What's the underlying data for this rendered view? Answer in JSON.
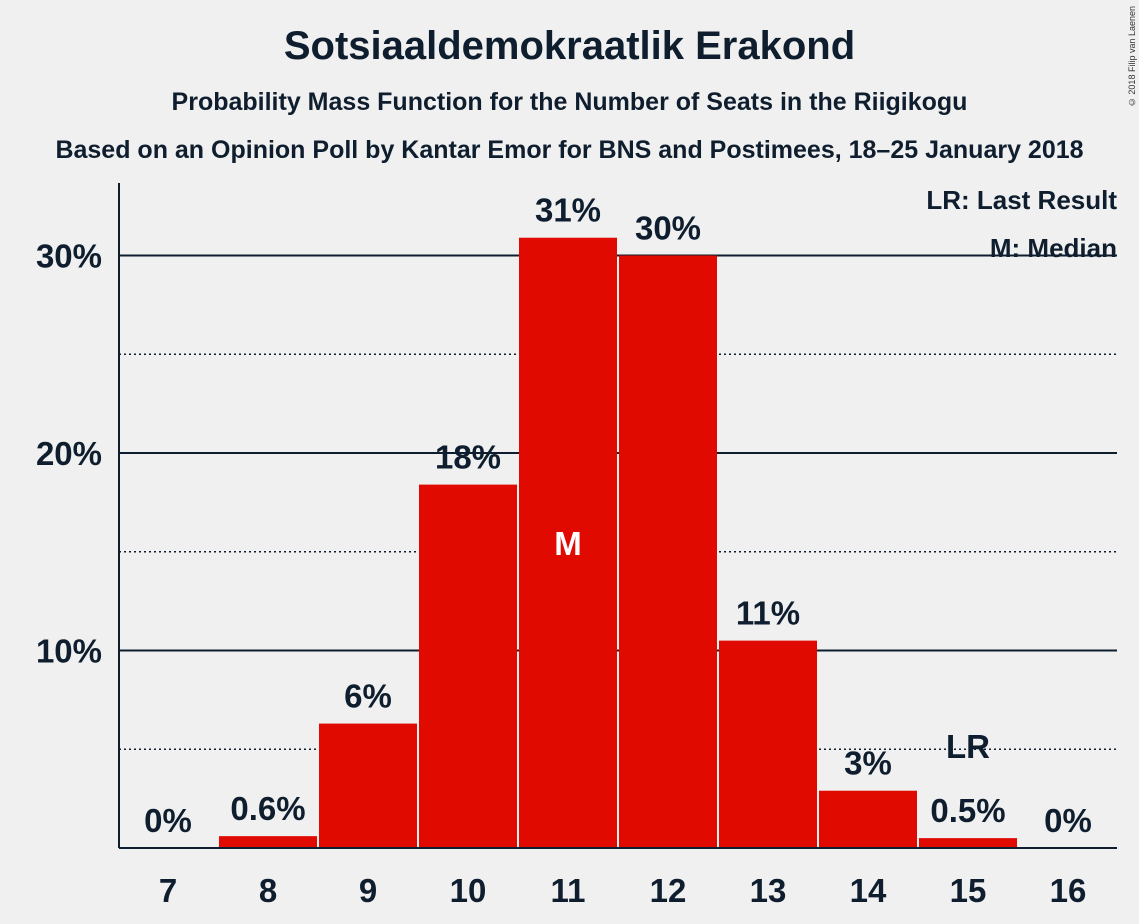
{
  "header": {
    "title": "Sotsiaaldemokraatlik Erakond",
    "subtitle": "Probability Mass Function for the Number of Seats in the Riigikogu",
    "subtitle2": "Based on an Opinion Poll by Kantar Emor for BNS and Postimees, 18–25 January 2018",
    "copyright": "© 2018 Filip van Laenen"
  },
  "legend": {
    "last_result": "LR: Last Result",
    "median": "M: Median"
  },
  "colors": {
    "bar": "#e00a00",
    "background": "#f0f0f0",
    "text": "#0f1e2e"
  },
  "chart_data": {
    "type": "bar",
    "title": "Sotsiaaldemokraatlik Erakond",
    "xlabel": "",
    "ylabel": "",
    "categories": [
      "7",
      "8",
      "9",
      "10",
      "11",
      "12",
      "13",
      "14",
      "15",
      "16"
    ],
    "values": [
      0,
      0.6,
      6.3,
      18.4,
      30.9,
      30.0,
      10.5,
      2.9,
      0.5,
      0
    ],
    "data_labels": [
      "0%",
      "0.6%",
      "6%",
      "18%",
      "31%",
      "30%",
      "11%",
      "3%",
      "0.5%",
      "0%"
    ],
    "ylim": [
      0,
      33.5
    ],
    "yticks": [
      10,
      20,
      30
    ],
    "ytick_labels": [
      "10%",
      "20%",
      "30%"
    ],
    "minor_gridlines": [
      5,
      15,
      25
    ],
    "median_category": "11",
    "median_marker": "M",
    "last_result_category": "15",
    "last_result_marker": "LR",
    "legend_position": "top-right"
  }
}
